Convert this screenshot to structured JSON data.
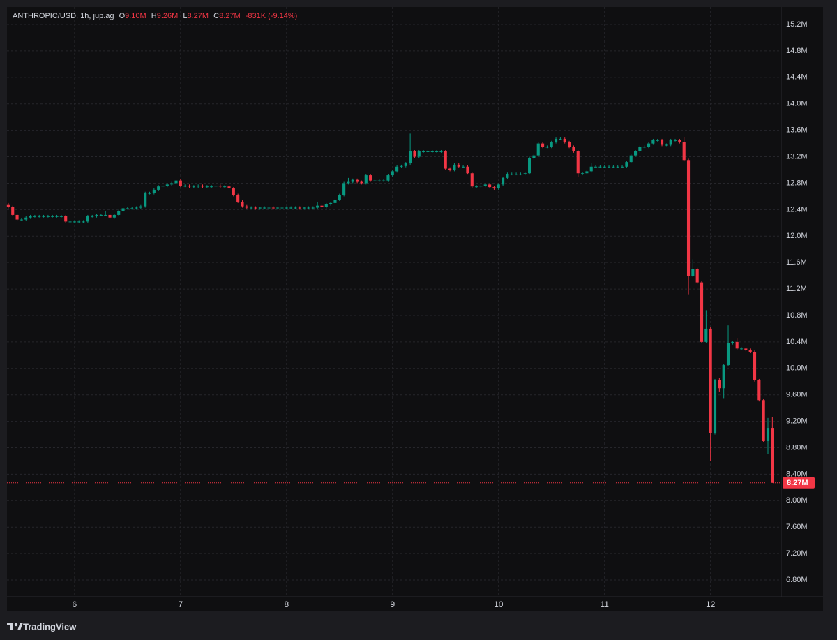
{
  "header": {
    "symbol": "ANTHROPIC/USD, 1h, jup.ag",
    "open_label": "O",
    "open": "9.10M",
    "high_label": "H",
    "high": "9.26M",
    "low_label": "L",
    "low": "8.27M",
    "close_label": "C",
    "close": "8.27M",
    "change": "-831K (-9.14%)"
  },
  "chart_data": {
    "type": "candlestick",
    "x": [
      -15,
      -14,
      -13,
      -12,
      -11,
      -10,
      -9,
      -8,
      -7,
      -6,
      -5,
      -4,
      -3,
      -2,
      -1,
      0,
      1,
      2,
      3,
      4,
      5,
      6,
      7,
      8,
      9,
      10,
      11,
      12,
      13,
      14,
      15,
      16,
      17,
      18,
      19,
      20,
      21,
      22,
      23,
      24,
      25,
      26,
      27,
      28,
      29,
      30,
      31,
      32,
      33,
      34,
      35,
      36,
      37,
      38,
      39,
      40,
      41,
      42,
      43,
      44,
      45,
      46,
      47,
      48,
      49,
      50,
      51,
      52,
      53,
      54,
      55,
      56,
      57,
      58,
      59,
      60,
      61,
      62,
      63,
      64,
      65,
      66,
      67,
      68,
      69,
      70,
      71,
      72,
      73,
      74,
      75,
      76,
      77,
      78,
      79,
      80,
      81,
      82,
      83,
      84,
      85,
      86,
      87,
      88,
      89,
      90,
      91,
      92,
      93,
      94,
      95,
      96,
      97,
      98,
      99,
      100,
      101,
      102,
      103,
      104,
      105,
      106,
      107,
      108,
      109,
      110,
      111,
      112,
      113,
      114,
      115,
      116,
      117,
      118,
      119,
      120,
      121,
      122,
      123,
      124,
      125,
      126,
      127,
      128,
      129,
      130,
      131,
      132,
      133,
      134,
      135,
      136,
      137,
      138,
      139,
      140,
      141,
      142,
      143,
      144,
      145,
      146,
      147,
      148,
      149,
      150,
      151,
      152,
      153,
      154,
      155,
      156,
      157,
      158
    ],
    "open": [
      12.47,
      12.44,
      12.32,
      12.25,
      12.25,
      12.28,
      12.3,
      12.3,
      12.3,
      12.3,
      12.3,
      12.3,
      12.3,
      12.3,
      12.22,
      12.22,
      12.22,
      12.22,
      12.22,
      12.3,
      12.3,
      12.32,
      12.32,
      12.32,
      12.28,
      12.32,
      12.38,
      12.42,
      12.42,
      12.42,
      12.43,
      12.45,
      12.65,
      12.65,
      12.7,
      12.75,
      12.76,
      12.78,
      12.8,
      12.84,
      12.76,
      12.76,
      12.75,
      12.75,
      12.76,
      12.75,
      12.75,
      12.75,
      12.76,
      12.75,
      12.75,
      12.72,
      12.62,
      12.52,
      12.45,
      12.43,
      12.43,
      12.42,
      12.43,
      12.43,
      12.43,
      12.42,
      12.43,
      12.43,
      12.43,
      12.43,
      12.43,
      12.42,
      12.43,
      12.43,
      12.43,
      12.46,
      12.44,
      12.48,
      12.5,
      12.55,
      12.62,
      12.8,
      12.82,
      12.85,
      12.82,
      12.8,
      12.92,
      12.84,
      12.84,
      12.84,
      12.84,
      12.92,
      12.98,
      13.05,
      13.06,
      13.1,
      13.28,
      13.2,
      13.28,
      13.28,
      13.28,
      13.28,
      13.28,
      13.28,
      13.02,
      13.0,
      13.08,
      13.05,
      13.05,
      12.95,
      12.75,
      12.75,
      12.76,
      12.78,
      12.74,
      12.72,
      12.78,
      12.88,
      12.94,
      12.94,
      12.94,
      12.94,
      12.95,
      13.18,
      13.22,
      13.4,
      13.35,
      13.35,
      13.42,
      13.47,
      13.47,
      13.42,
      13.35,
      13.28,
      12.95,
      12.95,
      12.98,
      13.05,
      13.05,
      13.05,
      13.05,
      13.05,
      13.05,
      13.05,
      13.05,
      13.12,
      13.22,
      13.28,
      13.35,
      13.35,
      13.4,
      13.45,
      13.45,
      13.38,
      13.38,
      13.45,
      13.45,
      13.42,
      13.15,
      11.4,
      11.5,
      11.3,
      10.4,
      10.6,
      9.02,
      9.82,
      9.7,
      10.05,
      10.38,
      10.4,
      10.3,
      10.3,
      10.28,
      10.25,
      9.82,
      9.52,
      8.9,
      9.1
    ],
    "high": [
      12.5,
      12.46,
      12.34,
      12.27,
      12.3,
      12.32,
      12.32,
      12.32,
      12.32,
      12.32,
      12.32,
      12.32,
      12.32,
      12.32,
      12.24,
      12.24,
      12.24,
      12.24,
      12.32,
      12.32,
      12.34,
      12.34,
      12.38,
      12.34,
      12.34,
      12.4,
      12.44,
      12.44,
      12.44,
      12.45,
      12.47,
      12.67,
      12.67,
      12.72,
      12.77,
      12.78,
      12.8,
      12.82,
      12.86,
      12.86,
      12.78,
      12.78,
      12.77,
      12.78,
      12.78,
      12.77,
      12.77,
      12.78,
      12.78,
      12.77,
      12.77,
      12.74,
      12.64,
      12.54,
      12.47,
      12.45,
      12.45,
      12.44,
      12.45,
      12.45,
      12.45,
      12.44,
      12.45,
      12.45,
      12.45,
      12.45,
      12.45,
      12.44,
      12.45,
      12.45,
      12.52,
      12.48,
      12.5,
      12.52,
      12.57,
      12.64,
      12.82,
      12.88,
      12.87,
      12.87,
      12.84,
      12.94,
      12.94,
      12.86,
      12.86,
      12.86,
      12.94,
      13.0,
      13.07,
      13.08,
      13.12,
      13.55,
      13.3,
      13.3,
      13.3,
      13.3,
      13.3,
      13.3,
      13.3,
      13.3,
      13.04,
      13.1,
      13.1,
      13.07,
      13.07,
      12.97,
      12.77,
      12.78,
      12.8,
      12.8,
      12.76,
      12.8,
      12.9,
      12.96,
      12.96,
      12.96,
      12.96,
      12.97,
      13.2,
      13.24,
      13.42,
      13.42,
      13.37,
      13.44,
      13.49,
      13.5,
      13.49,
      13.44,
      13.37,
      13.3,
      12.97,
      13.0,
      13.1,
      13.07,
      13.07,
      13.07,
      13.07,
      13.07,
      13.07,
      13.07,
      13.14,
      13.24,
      13.3,
      13.37,
      13.37,
      13.42,
      13.47,
      13.47,
      13.47,
      13.4,
      13.47,
      13.47,
      13.47,
      13.5,
      13.17,
      11.65,
      11.52,
      11.32,
      10.88,
      10.62,
      9.84,
      9.85,
      10.07,
      10.65,
      10.42,
      10.45,
      10.32,
      10.3,
      10.3,
      10.27,
      9.84,
      9.54,
      9.25,
      9.26
    ],
    "low": [
      12.42,
      12.3,
      12.23,
      12.23,
      12.23,
      12.26,
      12.28,
      12.28,
      12.28,
      12.28,
      12.28,
      12.28,
      12.28,
      12.2,
      12.2,
      12.2,
      12.2,
      12.2,
      12.2,
      12.28,
      12.28,
      12.3,
      12.3,
      12.26,
      12.26,
      12.3,
      12.36,
      12.4,
      12.4,
      12.4,
      12.41,
      12.43,
      12.63,
      12.63,
      12.68,
      12.73,
      12.74,
      12.76,
      12.78,
      12.74,
      12.74,
      12.73,
      12.73,
      12.73,
      12.73,
      12.73,
      12.73,
      12.73,
      12.73,
      12.73,
      12.7,
      12.6,
      12.5,
      12.43,
      12.41,
      12.41,
      12.4,
      12.4,
      12.41,
      12.41,
      12.4,
      12.4,
      12.41,
      12.41,
      12.41,
      12.41,
      12.4,
      12.4,
      12.41,
      12.41,
      12.41,
      12.42,
      12.42,
      12.46,
      12.48,
      12.53,
      12.6,
      12.78,
      12.8,
      12.8,
      12.78,
      12.78,
      12.82,
      12.82,
      12.82,
      12.82,
      12.82,
      12.9,
      12.96,
      13.03,
      13.04,
      13.08,
      13.18,
      13.18,
      13.26,
      13.26,
      13.26,
      13.26,
      13.26,
      13.0,
      12.98,
      12.98,
      13.03,
      13.03,
      12.93,
      12.73,
      12.73,
      12.73,
      12.74,
      12.72,
      12.7,
      12.7,
      12.76,
      12.86,
      12.92,
      12.92,
      12.92,
      12.92,
      12.93,
      13.16,
      13.2,
      13.33,
      13.33,
      13.33,
      13.4,
      13.45,
      13.4,
      13.33,
      13.26,
      12.9,
      12.92,
      12.93,
      12.96,
      13.03,
      13.03,
      13.03,
      13.03,
      13.03,
      13.03,
      13.03,
      13.03,
      13.1,
      13.2,
      13.26,
      13.33,
      13.33,
      13.38,
      13.43,
      13.36,
      13.36,
      13.36,
      13.43,
      13.4,
      13.13,
      11.12,
      11.38,
      11.28,
      10.38,
      10.38,
      8.6,
      9.0,
      9.65,
      9.55,
      10.03,
      10.36,
      10.28,
      10.28,
      10.26,
      10.23,
      9.8,
      9.5,
      8.88,
      8.7,
      8.27
    ],
    "close": [
      12.44,
      12.32,
      12.25,
      12.25,
      12.28,
      12.3,
      12.3,
      12.3,
      12.3,
      12.3,
      12.3,
      12.3,
      12.3,
      12.22,
      12.22,
      12.22,
      12.22,
      12.22,
      12.3,
      12.3,
      12.32,
      12.32,
      12.32,
      12.28,
      12.32,
      12.38,
      12.42,
      12.42,
      12.42,
      12.43,
      12.45,
      12.65,
      12.65,
      12.7,
      12.75,
      12.76,
      12.78,
      12.8,
      12.84,
      12.76,
      12.76,
      12.75,
      12.75,
      12.76,
      12.75,
      12.75,
      12.75,
      12.76,
      12.75,
      12.75,
      12.72,
      12.62,
      12.52,
      12.45,
      12.43,
      12.43,
      12.42,
      12.43,
      12.43,
      12.43,
      12.42,
      12.43,
      12.43,
      12.43,
      12.43,
      12.43,
      12.42,
      12.43,
      12.43,
      12.43,
      12.46,
      12.44,
      12.48,
      12.5,
      12.55,
      12.62,
      12.8,
      12.82,
      12.85,
      12.82,
      12.8,
      12.92,
      12.84,
      12.84,
      12.84,
      12.84,
      12.92,
      12.98,
      13.05,
      13.06,
      13.1,
      13.28,
      13.2,
      13.28,
      13.28,
      13.28,
      13.28,
      13.28,
      13.28,
      13.02,
      13.0,
      13.08,
      13.05,
      13.05,
      12.95,
      12.75,
      12.75,
      12.76,
      12.78,
      12.74,
      12.72,
      12.78,
      12.88,
      12.94,
      12.94,
      12.94,
      12.94,
      12.95,
      13.18,
      13.22,
      13.4,
      13.35,
      13.35,
      13.42,
      13.47,
      13.47,
      13.42,
      13.35,
      13.28,
      12.95,
      12.95,
      12.98,
      13.05,
      13.05,
      13.05,
      13.05,
      13.05,
      13.05,
      13.05,
      13.05,
      13.12,
      13.22,
      13.28,
      13.35,
      13.35,
      13.4,
      13.45,
      13.45,
      13.38,
      13.38,
      13.45,
      13.45,
      13.42,
      13.15,
      11.4,
      11.5,
      11.3,
      10.4,
      10.6,
      9.02,
      9.82,
      9.7,
      10.05,
      10.38,
      10.4,
      10.3,
      10.3,
      10.28,
      10.25,
      9.82,
      9.52,
      8.9,
      9.1,
      8.27
    ],
    "up_color": "#089981",
    "down_color": "#f23645",
    "xlim": [
      -15.3,
      160
    ],
    "xticks": [
      {
        "value": 0,
        "label": "6"
      },
      {
        "value": 24,
        "label": "7"
      },
      {
        "value": 48,
        "label": "8"
      },
      {
        "value": 72,
        "label": "9"
      },
      {
        "value": 96,
        "label": "10"
      },
      {
        "value": 120,
        "label": "11"
      },
      {
        "value": 144,
        "label": "12"
      }
    ],
    "ylim": [
      6.547,
      15.464
    ],
    "yticks": [
      {
        "value": 15.2,
        "label": "15.2M"
      },
      {
        "value": 14.8,
        "label": "14.8M"
      },
      {
        "value": 14.4,
        "label": "14.4M"
      },
      {
        "value": 14.0,
        "label": "14.0M"
      },
      {
        "value": 13.6,
        "label": "13.6M"
      },
      {
        "value": 13.2,
        "label": "13.2M"
      },
      {
        "value": 12.8,
        "label": "12.8M"
      },
      {
        "value": 12.4,
        "label": "12.4M"
      },
      {
        "value": 12.0,
        "label": "12.0M"
      },
      {
        "value": 11.6,
        "label": "11.6M"
      },
      {
        "value": 11.2,
        "label": "11.2M"
      },
      {
        "value": 10.8,
        "label": "10.8M"
      },
      {
        "value": 10.4,
        "label": "10.4M"
      },
      {
        "value": 10.0,
        "label": "10.0M"
      },
      {
        "value": 9.6,
        "label": "9.60M"
      },
      {
        "value": 9.2,
        "label": "9.20M"
      },
      {
        "value": 8.8,
        "label": "8.80M"
      },
      {
        "value": 8.4,
        "label": "8.40M"
      },
      {
        "value": 8.0,
        "label": "8.00M"
      },
      {
        "value": 7.6,
        "label": "7.60M"
      },
      {
        "value": 7.2,
        "label": "7.20M"
      },
      {
        "value": 6.8,
        "label": "6.80M"
      }
    ],
    "grid": true,
    "last_price": {
      "value": 8.27,
      "label": "8.27M"
    }
  },
  "footer": {
    "brand": "TradingView"
  }
}
